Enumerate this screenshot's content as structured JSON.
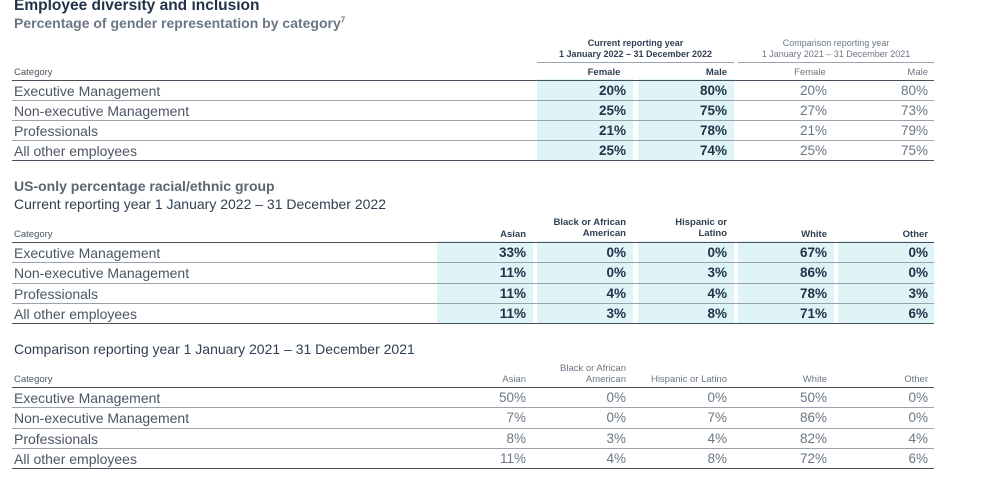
{
  "heading": {
    "title": "Employee diversity and inclusion",
    "subtitle": "Percentage of gender representation by category",
    "footnote": "7"
  },
  "gender_table": {
    "current_group": [
      "Current reporting year",
      "1 January 2022 – 31 December 2022"
    ],
    "comparison_group": [
      "Comparison reporting year",
      "1 January 2021 – 31 December 2021"
    ],
    "category_header": "Category",
    "columns": [
      "Female",
      "Male",
      "Female",
      "Male"
    ],
    "rows": [
      {
        "label": "Executive Management",
        "values": [
          "20%",
          "80%",
          "20%",
          "80%"
        ]
      },
      {
        "label": "Non-executive Management",
        "values": [
          "25%",
          "75%",
          "27%",
          "73%"
        ]
      },
      {
        "label": "Professionals",
        "values": [
          "21%",
          "78%",
          "21%",
          "79%"
        ]
      },
      {
        "label": "All other employees",
        "values": [
          "25%",
          "74%",
          "25%",
          "75%"
        ]
      }
    ],
    "highlight_color": "#dff4f7"
  },
  "racial_current": {
    "title": "US-only percentage racial/ethnic group",
    "subtitle": "Current reporting year 1 January 2022 – 31 December 2022",
    "category_header": "Category",
    "columns": [
      "Asian",
      [
        "Black or African",
        "American"
      ],
      [
        "Hispanic or",
        "Latino"
      ],
      "White",
      "Other"
    ],
    "rows": [
      {
        "label": "Executive Management",
        "values": [
          "33%",
          "0%",
          "0%",
          "67%",
          "0%"
        ]
      },
      {
        "label": "Non-executive Management",
        "values": [
          "11%",
          "0%",
          "3%",
          "86%",
          "0%"
        ]
      },
      {
        "label": "Professionals",
        "values": [
          "11%",
          "4%",
          "4%",
          "78%",
          "3%"
        ]
      },
      {
        "label": "All other employees",
        "values": [
          "11%",
          "3%",
          "8%",
          "71%",
          "6%"
        ]
      }
    ]
  },
  "racial_comparison": {
    "subtitle": "Comparison reporting year 1 January 2021 – 31 December 2021",
    "category_header": "Category",
    "columns": [
      "Asian",
      [
        "Black or African",
        "American"
      ],
      "Hispanic or Latino",
      "White",
      "Other"
    ],
    "rows": [
      {
        "label": "Executive Management",
        "values": [
          "50%",
          "0%",
          "0%",
          "50%",
          "0%"
        ]
      },
      {
        "label": "Non-executive Management",
        "values": [
          "7%",
          "0%",
          "7%",
          "86%",
          "0%"
        ]
      },
      {
        "label": "Professionals",
        "values": [
          "8%",
          "3%",
          "4%",
          "82%",
          "4%"
        ]
      },
      {
        "label": "All other employees",
        "values": [
          "11%",
          "4%",
          "8%",
          "72%",
          "6%"
        ]
      }
    ]
  }
}
